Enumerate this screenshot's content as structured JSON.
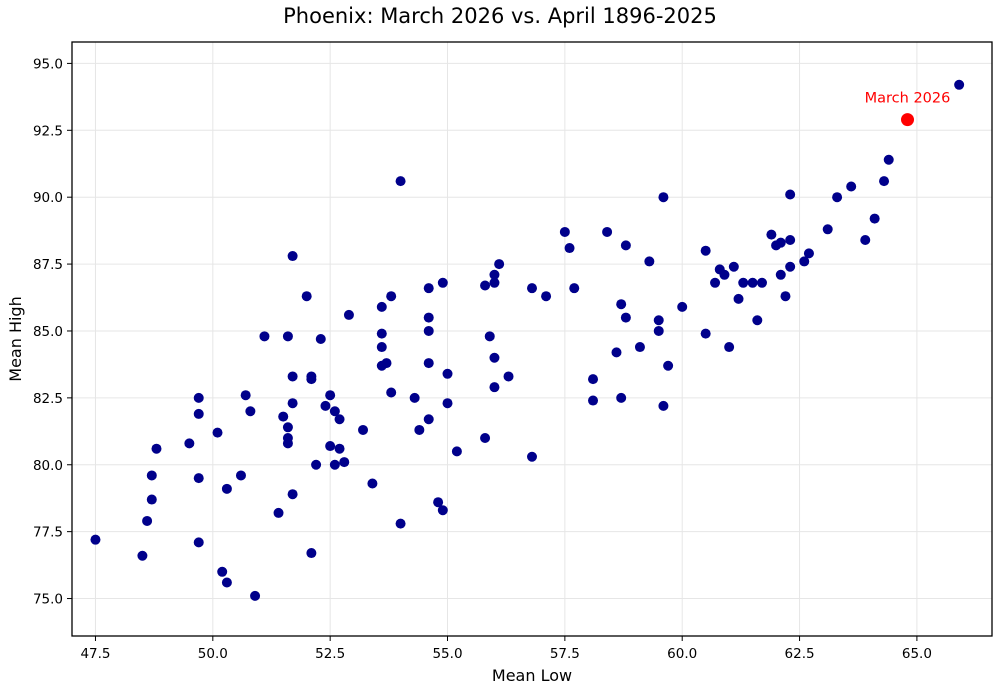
{
  "chart_data": {
    "type": "scatter",
    "title": "Phoenix: March 2026 vs. April 1896-2025",
    "xlabel": "Mean Low",
    "ylabel": "Mean High",
    "xlim": [
      47.0,
      66.6
    ],
    "ylim": [
      73.6,
      95.8
    ],
    "xticks": [
      47.5,
      50.0,
      52.5,
      55.0,
      57.5,
      60.0,
      62.5,
      65.0
    ],
    "xtick_labels": [
      "47.5",
      "50.0",
      "52.5",
      "55.0",
      "57.5",
      "60.0",
      "62.5",
      "65.0"
    ],
    "yticks": [
      75.0,
      77.5,
      80.0,
      82.5,
      85.0,
      87.5,
      90.0,
      92.5,
      95.0
    ],
    "ytick_labels": [
      "75.0",
      "77.5",
      "80.0",
      "82.5",
      "85.0",
      "87.5",
      "90.0",
      "92.5",
      "95.0"
    ],
    "grid": true,
    "legend": null,
    "series": [
      {
        "name": "April 1896-2025",
        "color": "#00008b",
        "points": [
          [
            47.5,
            77.2
          ],
          [
            48.5,
            76.6
          ],
          [
            48.6,
            77.9
          ],
          [
            48.7,
            78.7
          ],
          [
            48.7,
            79.6
          ],
          [
            48.8,
            80.6
          ],
          [
            49.5,
            80.8
          ],
          [
            49.7,
            82.5
          ],
          [
            49.7,
            81.9
          ],
          [
            49.7,
            79.5
          ],
          [
            49.7,
            77.1
          ],
          [
            50.1,
            81.2
          ],
          [
            50.2,
            76.0
          ],
          [
            50.3,
            75.6
          ],
          [
            50.3,
            79.1
          ],
          [
            50.6,
            79.6
          ],
          [
            50.7,
            82.6
          ],
          [
            50.8,
            82.0
          ],
          [
            50.9,
            75.1
          ],
          [
            51.1,
            84.8
          ],
          [
            51.4,
            78.2
          ],
          [
            51.5,
            81.8
          ],
          [
            51.6,
            84.8
          ],
          [
            51.6,
            81.4
          ],
          [
            51.6,
            81.0
          ],
          [
            51.6,
            80.8
          ],
          [
            51.7,
            87.8
          ],
          [
            51.7,
            83.3
          ],
          [
            51.7,
            82.3
          ],
          [
            51.7,
            78.9
          ],
          [
            52.0,
            86.3
          ],
          [
            52.1,
            83.3
          ],
          [
            52.1,
            83.2
          ],
          [
            52.1,
            76.7
          ],
          [
            52.2,
            80.0
          ],
          [
            52.3,
            84.7
          ],
          [
            52.4,
            82.2
          ],
          [
            52.5,
            82.6
          ],
          [
            52.5,
            80.7
          ],
          [
            52.6,
            82.0
          ],
          [
            52.6,
            80.0
          ],
          [
            52.7,
            81.7
          ],
          [
            52.7,
            80.6
          ],
          [
            52.8,
            80.1
          ],
          [
            52.9,
            85.6
          ],
          [
            53.2,
            81.3
          ],
          [
            53.4,
            79.3
          ],
          [
            53.6,
            85.9
          ],
          [
            53.6,
            84.9
          ],
          [
            53.6,
            84.4
          ],
          [
            53.6,
            83.7
          ],
          [
            53.7,
            83.8
          ],
          [
            53.8,
            86.3
          ],
          [
            53.8,
            82.7
          ],
          [
            54.0,
            90.6
          ],
          [
            54.0,
            77.8
          ],
          [
            54.3,
            82.5
          ],
          [
            54.4,
            81.3
          ],
          [
            54.6,
            86.6
          ],
          [
            54.6,
            85.5
          ],
          [
            54.6,
            85.0
          ],
          [
            54.6,
            83.8
          ],
          [
            54.6,
            81.7
          ],
          [
            54.8,
            78.6
          ],
          [
            54.9,
            86.8
          ],
          [
            54.9,
            78.3
          ],
          [
            55.0,
            83.4
          ],
          [
            55.0,
            82.3
          ],
          [
            55.2,
            80.5
          ],
          [
            55.8,
            86.7
          ],
          [
            55.8,
            81.0
          ],
          [
            55.9,
            84.8
          ],
          [
            56.0,
            87.1
          ],
          [
            56.0,
            86.8
          ],
          [
            56.0,
            84.0
          ],
          [
            56.0,
            82.9
          ],
          [
            56.1,
            87.5
          ],
          [
            56.3,
            83.3
          ],
          [
            56.8,
            86.6
          ],
          [
            56.8,
            80.3
          ],
          [
            57.1,
            86.3
          ],
          [
            57.5,
            88.7
          ],
          [
            57.6,
            88.1
          ],
          [
            57.7,
            86.6
          ],
          [
            58.1,
            83.2
          ],
          [
            58.1,
            82.4
          ],
          [
            58.4,
            88.7
          ],
          [
            58.6,
            84.2
          ],
          [
            58.7,
            86.0
          ],
          [
            58.7,
            82.5
          ],
          [
            58.8,
            88.2
          ],
          [
            58.8,
            85.5
          ],
          [
            59.1,
            84.4
          ],
          [
            59.3,
            87.6
          ],
          [
            59.5,
            85.4
          ],
          [
            59.5,
            85.0
          ],
          [
            59.6,
            90.0
          ],
          [
            59.6,
            82.2
          ],
          [
            59.7,
            83.7
          ],
          [
            60.0,
            85.9
          ],
          [
            60.5,
            88.0
          ],
          [
            60.5,
            84.9
          ],
          [
            60.7,
            86.8
          ],
          [
            60.8,
            87.3
          ],
          [
            60.9,
            87.1
          ],
          [
            61.0,
            84.4
          ],
          [
            61.1,
            87.4
          ],
          [
            61.2,
            86.2
          ],
          [
            61.3,
            86.8
          ],
          [
            61.5,
            86.8
          ],
          [
            61.6,
            85.4
          ],
          [
            61.7,
            86.8
          ],
          [
            61.9,
            88.6
          ],
          [
            62.0,
            88.2
          ],
          [
            62.1,
            88.3
          ],
          [
            62.1,
            87.1
          ],
          [
            62.2,
            86.3
          ],
          [
            62.3,
            90.1
          ],
          [
            62.3,
            88.4
          ],
          [
            62.3,
            87.4
          ],
          [
            62.6,
            87.6
          ],
          [
            62.7,
            87.9
          ],
          [
            63.1,
            88.8
          ],
          [
            63.3,
            90.0
          ],
          [
            63.6,
            90.4
          ],
          [
            63.9,
            88.4
          ],
          [
            64.1,
            89.2
          ],
          [
            64.3,
            90.6
          ],
          [
            64.4,
            91.4
          ],
          [
            65.9,
            94.2
          ]
        ]
      },
      {
        "name": "March 2026",
        "color": "#ff0000",
        "points": [
          [
            64.8,
            92.9
          ]
        ],
        "annotation": "March 2026"
      }
    ]
  },
  "colors": {
    "historical_marker": "#00008b",
    "highlight_marker": "#ff0000",
    "grid": "#e6e6e6",
    "axes": "#000000"
  }
}
